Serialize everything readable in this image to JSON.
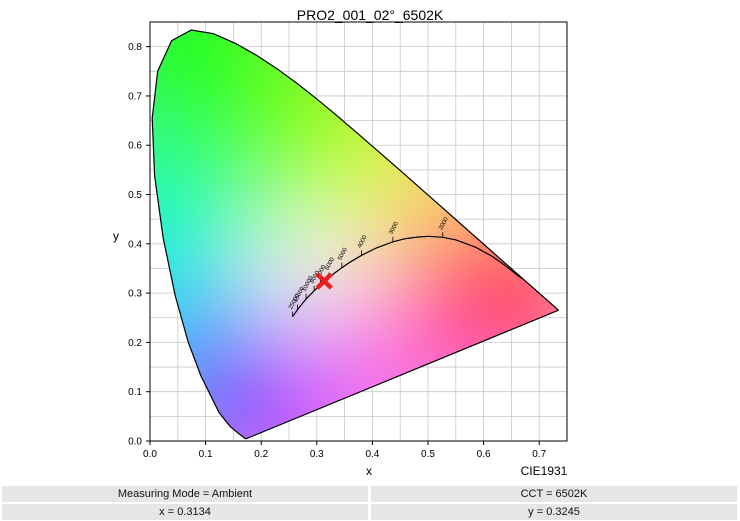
{
  "chart_data": {
    "type": "scatter",
    "title": "PRO2_001_02°_6502K",
    "xlabel": "x",
    "ylabel": "y",
    "xlim": [
      0.0,
      0.75
    ],
    "ylim": [
      0.0,
      0.85
    ],
    "x_ticks": [
      "0.0",
      "0.1",
      "0.2",
      "0.3",
      "0.4",
      "0.5",
      "0.6",
      "0.7"
    ],
    "y_ticks": [
      "0.0",
      "0.1",
      "0.2",
      "0.3",
      "0.4",
      "0.5",
      "0.6",
      "0.7",
      "0.8"
    ],
    "grid": true,
    "corner_label": "CIE1931",
    "measured_point": {
      "x": 0.3134,
      "y": 0.3245,
      "marker": "red-x",
      "color": "#ee1c1c"
    },
    "spectral_locus": [
      [
        0.1741,
        0.005
      ],
      [
        0.1738,
        0.0049
      ],
      [
        0.1733,
        0.0048
      ],
      [
        0.1726,
        0.0048
      ],
      [
        0.1714,
        0.0051
      ],
      [
        0.1689,
        0.0069
      ],
      [
        0.1644,
        0.0109
      ],
      [
        0.1566,
        0.0177
      ],
      [
        0.144,
        0.0297
      ],
      [
        0.1241,
        0.0578
      ],
      [
        0.0913,
        0.1327
      ],
      [
        0.0687,
        0.2007
      ],
      [
        0.0454,
        0.295
      ],
      [
        0.0235,
        0.4127
      ],
      [
        0.0082,
        0.5384
      ],
      [
        0.0039,
        0.6548
      ],
      [
        0.0139,
        0.7502
      ],
      [
        0.0389,
        0.812
      ],
      [
        0.0743,
        0.8338
      ],
      [
        0.1142,
        0.8262
      ],
      [
        0.1547,
        0.8059
      ],
      [
        0.1929,
        0.7816
      ],
      [
        0.2296,
        0.7543
      ],
      [
        0.2658,
        0.7243
      ],
      [
        0.3016,
        0.6923
      ],
      [
        0.3373,
        0.6589
      ],
      [
        0.3731,
        0.6245
      ],
      [
        0.4087,
        0.5896
      ],
      [
        0.4441,
        0.5547
      ],
      [
        0.4788,
        0.5202
      ],
      [
        0.5125,
        0.4866
      ],
      [
        0.5448,
        0.4544
      ],
      [
        0.5752,
        0.4242
      ],
      [
        0.6029,
        0.3965
      ],
      [
        0.627,
        0.3725
      ],
      [
        0.6482,
        0.3514
      ],
      [
        0.6658,
        0.334
      ],
      [
        0.6801,
        0.3197
      ],
      [
        0.6915,
        0.3083
      ],
      [
        0.7006,
        0.2993
      ],
      [
        0.7079,
        0.292
      ],
      [
        0.714,
        0.2859
      ],
      [
        0.719,
        0.2809
      ],
      [
        0.723,
        0.277
      ],
      [
        0.726,
        0.274
      ],
      [
        0.7283,
        0.2717
      ],
      [
        0.73,
        0.27
      ],
      [
        0.7311,
        0.2689
      ],
      [
        0.732,
        0.268
      ],
      [
        0.7327,
        0.2673
      ],
      [
        0.7334,
        0.2666
      ],
      [
        0.734,
        0.266
      ],
      [
        0.7344,
        0.2656
      ],
      [
        0.7346,
        0.2654
      ],
      [
        0.7347,
        0.2653
      ]
    ],
    "planckian_locus": [
      [
        0.2565,
        0.2522
      ],
      [
        0.2653,
        0.2665
      ],
      [
        0.2807,
        0.2883
      ],
      [
        0.2952,
        0.3048
      ],
      [
        0.3135,
        0.3236
      ],
      [
        0.3221,
        0.3318
      ],
      [
        0.3324,
        0.341
      ],
      [
        0.3451,
        0.3516
      ],
      [
        0.3608,
        0.3636
      ],
      [
        0.3805,
        0.3768
      ],
      [
        0.4073,
        0.3917
      ],
      [
        0.4369,
        0.4041
      ],
      [
        0.4599,
        0.4106
      ],
      [
        0.4825,
        0.4138
      ],
      [
        0.5015,
        0.4152
      ],
      [
        0.5266,
        0.4133
      ],
      [
        0.5497,
        0.4081
      ],
      [
        0.5857,
        0.3931
      ],
      [
        0.6161,
        0.374
      ],
      [
        0.64,
        0.355
      ],
      [
        0.66,
        0.337
      ],
      [
        0.67,
        0.329
      ]
    ],
    "cct_ticks": [
      {
        "label": "2000",
        "x": 0.5266,
        "y": 0.4133
      },
      {
        "label": "3000",
        "x": 0.4369,
        "y": 0.4041
      },
      {
        "label": "4000",
        "x": 0.3805,
        "y": 0.3768
      },
      {
        "label": "5000",
        "x": 0.3451,
        "y": 0.3516
      },
      {
        "label": "6000",
        "x": 0.3221,
        "y": 0.3318
      },
      {
        "label": "7000",
        "x": 0.3064,
        "y": 0.3166
      },
      {
        "label": "8000",
        "x": 0.2952,
        "y": 0.3048
      },
      {
        "label": "10000",
        "x": 0.2807,
        "y": 0.2883
      },
      {
        "label": "15000",
        "x": 0.2653,
        "y": 0.2665
      },
      {
        "label": "25000",
        "x": 0.2565,
        "y": 0.2522
      }
    ]
  },
  "footer": {
    "measuring_mode": "Measuring Mode = Ambient",
    "cct": "CCT = 6502K",
    "x_value": "x = 0.3134",
    "y_value": "y = 0.3245"
  }
}
